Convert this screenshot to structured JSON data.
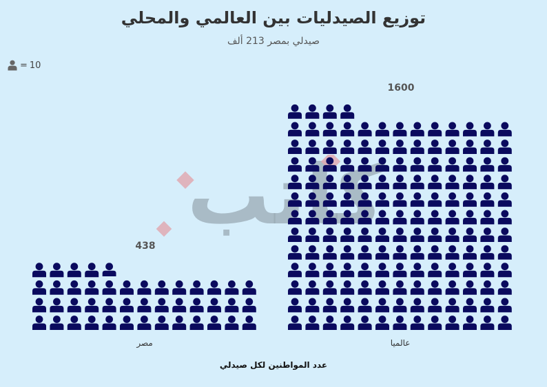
{
  "title": "توزيع الصيدليات بين العالمي والمحلي",
  "subtitle": "صيدلي بمصر 213 ألف",
  "legend": {
    "unit_value": "10",
    "icon": "person-icon"
  },
  "xaxis_title": "عدد المواطنين لكل صيدلي",
  "watermark": {
    "text": "كاتب"
  },
  "colors": {
    "background": "#d6eefb",
    "icon": "#0a0a5e",
    "watermark_gray": "#9aa9b4",
    "watermark_red": "#e0a9b2"
  },
  "chart_data": {
    "type": "pictograph",
    "unit": 10,
    "categories": [
      "مصر",
      "عالميا"
    ],
    "values": [
      438,
      1600
    ],
    "title": "توزيع الصيدليات بين العالمي والمحلي",
    "subtitle": "صيدلي بمصر 213 ألف",
    "xlabel": "عدد المواطنين لكل صيدلي",
    "ylabel": "",
    "grid": false,
    "legend": "top-left"
  }
}
